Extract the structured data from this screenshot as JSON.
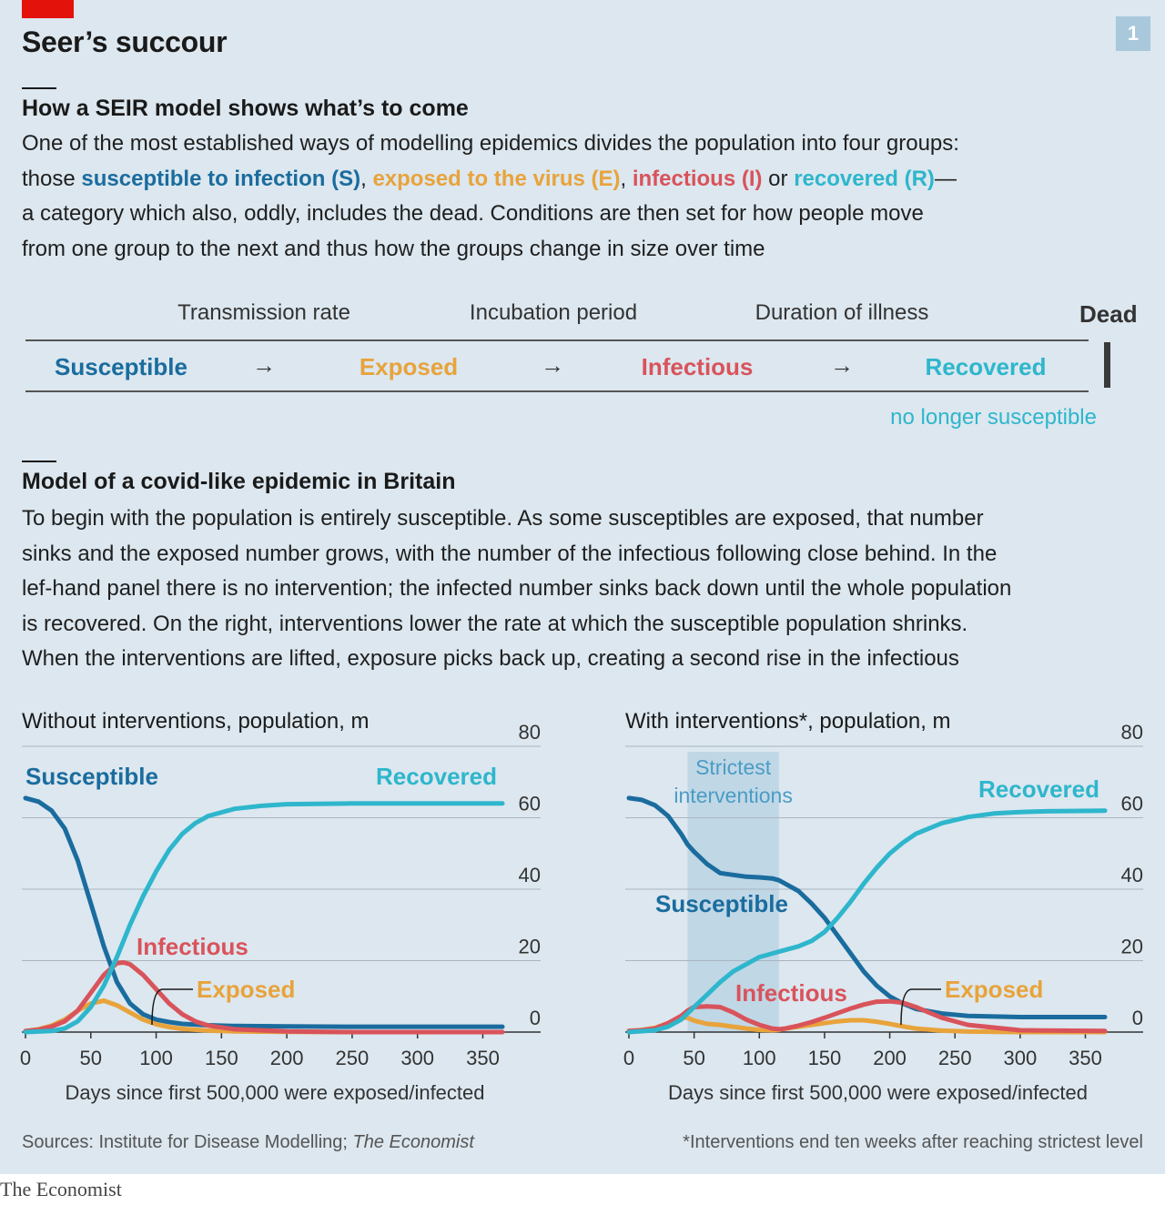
{
  "title": "Seer’s succour",
  "badge": "1",
  "section1": {
    "heading": "How a SEIR model shows what’s to come",
    "line1": "One of the most established ways of modelling epidemics divides the population into four groups:",
    "line2_prefix": "those ",
    "susceptible_term": "susceptible to infection (S)",
    "comma1": ", ",
    "exposed_term": "exposed to the virus (E)",
    "comma2": ", ",
    "infectious_term": "infectious (I)",
    "or": " or ",
    "recovered_term": "recovered (R)",
    "dash": "—",
    "line3": "a category which also, oddly, includes the dead. Conditions are then set for how people move",
    "line4": "from one group to the next and thus how the groups change in size over time"
  },
  "diagram": {
    "labels": [
      "Transmission rate",
      "Incubation period",
      "Duration of illness"
    ],
    "dead": "Dead",
    "stages": [
      "Susceptible",
      "Exposed",
      "Infectious",
      "Recovered"
    ],
    "arrow": "→",
    "note": "no longer susceptible"
  },
  "section2": {
    "heading": "Model of a covid-like epidemic in Britain",
    "lines": [
      "To begin with the population is entirely susceptible. As some susceptibles are exposed, that number",
      "sinks and the exposed number grows, with the number of the infectious following close behind. In the",
      "lef-hand panel there is no intervention; the infected number sinks back down until the whole population",
      "is recovered. On the right, interventions lower the rate at which the susceptible population shrinks.",
      "When the interventions are lifted, exposure picks back up, creating a second rise in the infectious"
    ]
  },
  "colors": {
    "susceptible": "#1a6c9e",
    "exposed": "#e8a33b",
    "infectious": "#d9535b",
    "recovered": "#2eb6cc",
    "shade": "#b7d2e3"
  },
  "chart_data": [
    {
      "type": "line",
      "title": "Without interventions, population, m",
      "xlabel": "Days since first 500,000 were exposed/infected",
      "ylabel": "",
      "xlim": [
        0,
        365
      ],
      "ylim": [
        0,
        80
      ],
      "xticks": [
        0,
        50,
        100,
        150,
        200,
        250,
        300,
        350
      ],
      "yticks": [
        0,
        20,
        40,
        60,
        80
      ],
      "grid": "horizontal",
      "series": [
        {
          "name": "Susceptible",
          "color_key": "susceptible",
          "x": [
            0,
            10,
            20,
            30,
            40,
            50,
            60,
            70,
            80,
            90,
            100,
            110,
            120,
            140,
            160,
            200,
            250,
            300,
            365
          ],
          "y": [
            65.5,
            64.5,
            62,
            57,
            48,
            36,
            24,
            14,
            8,
            5,
            3.5,
            2.8,
            2.3,
            1.9,
            1.7,
            1.6,
            1.5,
            1.5,
            1.5
          ]
        },
        {
          "name": "Exposed",
          "color_key": "exposed",
          "x": [
            0,
            10,
            20,
            30,
            40,
            50,
            60,
            70,
            80,
            90,
            100,
            110,
            120,
            140,
            160,
            200,
            250,
            365
          ],
          "y": [
            0.3,
            0.8,
            1.8,
            3.5,
            6,
            8,
            8.8,
            7.5,
            5.5,
            3.5,
            2.2,
            1.4,
            0.9,
            0.4,
            0.2,
            0.05,
            0,
            0
          ]
        },
        {
          "name": "Infectious",
          "color_key": "infectious",
          "x": [
            0,
            10,
            20,
            30,
            40,
            50,
            60,
            70,
            75,
            80,
            90,
            100,
            110,
            120,
            130,
            140,
            160,
            200,
            250,
            365
          ],
          "y": [
            0.3,
            0.7,
            1.5,
            3,
            6,
            11,
            16,
            19.3,
            19.5,
            19,
            16,
            12,
            8,
            5,
            3,
            1.8,
            0.8,
            0.2,
            0,
            0
          ]
        },
        {
          "name": "Recovered",
          "color_key": "recovered",
          "x": [
            0,
            20,
            30,
            40,
            50,
            60,
            70,
            80,
            90,
            100,
            110,
            120,
            130,
            140,
            160,
            180,
            200,
            250,
            300,
            365
          ],
          "y": [
            0,
            0.3,
            1,
            3,
            7,
            13,
            21,
            30,
            38,
            45,
            51,
            55.5,
            58.5,
            60.5,
            62.5,
            63.3,
            63.8,
            64,
            64,
            64
          ]
        }
      ],
      "annotations": [
        "Susceptible",
        "Recovered",
        "Infectious",
        "Exposed"
      ]
    },
    {
      "type": "line",
      "title": "With interventions*, population, m",
      "xlabel": "Days since first 500,000 were exposed/infected",
      "ylabel": "",
      "xlim": [
        0,
        365
      ],
      "ylim": [
        0,
        80
      ],
      "xticks": [
        0,
        50,
        100,
        150,
        200,
        250,
        300,
        350
      ],
      "yticks": [
        0,
        20,
        40,
        60,
        80
      ],
      "grid": "horizontal",
      "shaded_region": {
        "label": "Strictest interventions",
        "x": [
          45,
          115
        ]
      },
      "series": [
        {
          "name": "Susceptible",
          "color_key": "susceptible",
          "x": [
            0,
            10,
            20,
            30,
            40,
            45,
            50,
            60,
            70,
            80,
            90,
            100,
            110,
            115,
            120,
            130,
            140,
            150,
            160,
            170,
            180,
            190,
            200,
            210,
            220,
            240,
            260,
            300,
            365
          ],
          "y": [
            65.5,
            65,
            63.5,
            60.5,
            55.5,
            52.5,
            50.5,
            47,
            44.5,
            44,
            43.5,
            43.3,
            43,
            42.5,
            41.5,
            39.5,
            36,
            32,
            27,
            22,
            17,
            13,
            10,
            8,
            6.5,
            5.2,
            4.5,
            4.2,
            4.2
          ]
        },
        {
          "name": "Exposed",
          "color_key": "exposed",
          "x": [
            0,
            10,
            20,
            30,
            40,
            45,
            50,
            60,
            70,
            80,
            90,
            100,
            110,
            115,
            120,
            130,
            140,
            150,
            160,
            170,
            180,
            190,
            200,
            210,
            220,
            240,
            260,
            300,
            365
          ],
          "y": [
            0.3,
            0.6,
            1.2,
            2.5,
            4,
            4,
            3.2,
            2.3,
            2,
            1.5,
            1,
            0.6,
            0.5,
            0.6,
            1,
            1.5,
            2,
            2.5,
            3,
            3.3,
            3.3,
            2.9,
            2.3,
            1.6,
            1,
            0.4,
            0.15,
            0,
            0
          ]
        },
        {
          "name": "Infectious",
          "color_key": "infectious",
          "x": [
            0,
            10,
            20,
            30,
            40,
            45,
            50,
            60,
            70,
            80,
            90,
            100,
            110,
            115,
            120,
            130,
            140,
            150,
            160,
            170,
            180,
            190,
            200,
            210,
            220,
            230,
            240,
            260,
            300,
            365
          ],
          "y": [
            0.3,
            0.5,
            1,
            2.5,
            4.5,
            6,
            7,
            7.2,
            7,
            5.5,
            3.5,
            2,
            1,
            0.8,
            1,
            1.8,
            2.8,
            4,
            5.3,
            6.6,
            7.7,
            8.5,
            8.6,
            8.2,
            7,
            5.5,
            4,
            2,
            0.5,
            0.3
          ]
        },
        {
          "name": "Recovered",
          "color_key": "recovered",
          "x": [
            0,
            20,
            30,
            40,
            50,
            60,
            70,
            80,
            90,
            100,
            110,
            120,
            130,
            140,
            150,
            160,
            170,
            180,
            190,
            200,
            210,
            220,
            240,
            260,
            280,
            300,
            320,
            365
          ],
          "y": [
            0,
            0.5,
            1.5,
            3.5,
            7,
            10.5,
            14,
            17,
            19,
            21,
            22,
            23,
            24,
            25.5,
            28,
            32,
            36.5,
            41.5,
            46,
            50,
            53,
            55.5,
            58.5,
            60.2,
            61.2,
            61.6,
            61.8,
            62
          ]
        }
      ],
      "annotations": [
        "Susceptible",
        "Recovered",
        "Infectious",
        "Exposed"
      ]
    }
  ],
  "footer": {
    "sources_prefix": "Sources: Institute for Disease Modelling; ",
    "sources_italic": "The Economist",
    "note": "*Interventions end ten weeks after reaching strictest level"
  },
  "brand": "The Economist"
}
